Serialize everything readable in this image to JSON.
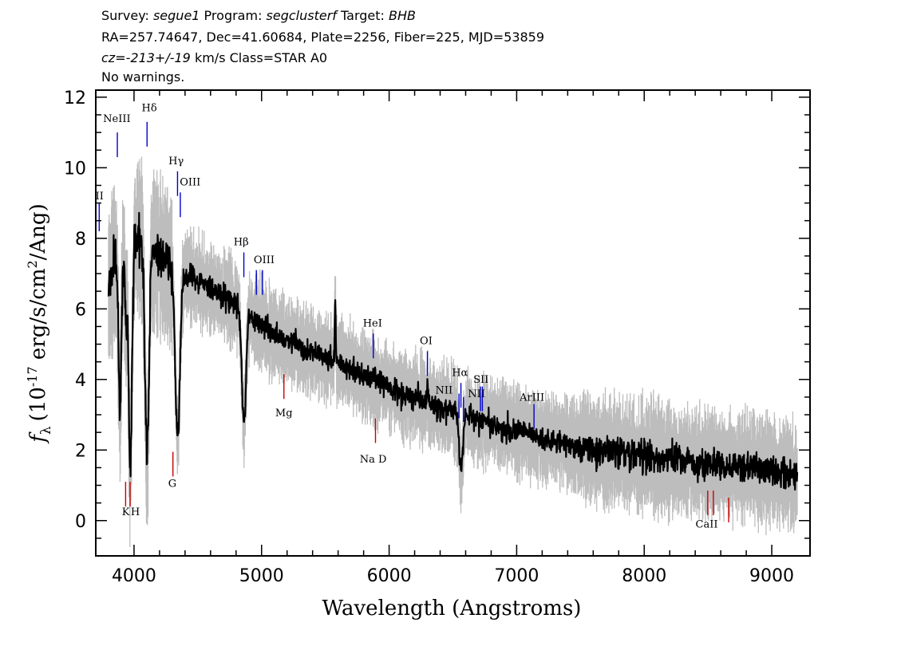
{
  "header": {
    "line1": {
      "survey_label": "Survey: ",
      "survey": "segue1",
      "program_label": " Program: ",
      "program": "segclusterf",
      "target_label": " Target: ",
      "target": "BHB"
    },
    "line2": "RA=257.74647, Dec=41.60684, Plate=2256, Fiber=225, MJD=53859",
    "line3": {
      "cz_prefix": "cz=",
      "cz_value": "-213+/-19",
      "cz_suffix": " km/s Class=STAR A0"
    },
    "line4": "No warnings."
  },
  "chart_data": {
    "type": "line",
    "xlabel": "Wavelength (Angstroms)",
    "ylabel": "f_λ (10^-17 erg/s/cm^2/Ang)",
    "ylabel_parts": {
      "symbol": "f",
      "sub": "λ",
      "pre": "(10",
      "exp": "-17",
      "mid": " erg/s/cm",
      "exp2": "2",
      "post": "/Ang)"
    },
    "xlim": [
      3700,
      9300
    ],
    "ylim": [
      -1,
      12.2
    ],
    "xticks": [
      4000,
      5000,
      6000,
      7000,
      8000,
      9000
    ],
    "yticks": [
      0,
      2,
      4,
      6,
      8,
      10,
      12
    ],
    "colors": {
      "spectrum": "#000000",
      "error_band": "#bdbdbd",
      "emission": "#0000cc",
      "absorption": "#cc0000"
    },
    "continuum_anchors": [
      [
        3800,
        6.5
      ],
      [
        3860,
        7.6
      ],
      [
        3950,
        7.9
      ],
      [
        4050,
        8.1
      ],
      [
        4150,
        7.7
      ],
      [
        4250,
        7.3
      ],
      [
        4400,
        7.0
      ],
      [
        4600,
        6.6
      ],
      [
        4850,
        6.0
      ],
      [
        5000,
        5.5
      ],
      [
        5300,
        4.9
      ],
      [
        5600,
        4.5
      ],
      [
        5900,
        3.95
      ],
      [
        6200,
        3.45
      ],
      [
        6500,
        3.1
      ],
      [
        6800,
        2.75
      ],
      [
        7200,
        2.35
      ],
      [
        7600,
        2.0
      ],
      [
        8000,
        1.85
      ],
      [
        8500,
        1.6
      ],
      [
        9000,
        1.4
      ],
      [
        9200,
        1.25
      ]
    ],
    "absorption_features": [
      {
        "name": "H8",
        "center": 3889,
        "depth": 4.5,
        "width": 12
      },
      {
        "name": "CaII K",
        "center": 3934,
        "depth": 2.0,
        "width": 8
      },
      {
        "name": "Hε",
        "center": 3970,
        "depth": 6.5,
        "width": 14
      },
      {
        "name": "Hδ",
        "center": 4102,
        "depth": 6.0,
        "width": 16
      },
      {
        "name": "Hγ",
        "center": 4341,
        "depth": 4.8,
        "width": 18
      },
      {
        "name": "Hβ",
        "center": 4861,
        "depth": 3.2,
        "width": 16
      },
      {
        "name": "Hα",
        "center": 6563,
        "depth": 1.6,
        "width": 14
      }
    ],
    "spikes": [
      {
        "x": 5577,
        "height": 1.6,
        "width": 4
      },
      {
        "x": 6300,
        "height": 0.6,
        "width": 4
      },
      {
        "x": 8860,
        "height": 0.4,
        "width": 6
      }
    ],
    "emission_lines": [
      {
        "label": "NeIII",
        "x": 3869,
        "y_top": 11.0,
        "y_bot": 10.3
      },
      {
        "label": "Hδ",
        "x": 4102,
        "y_top": 11.3,
        "y_bot": 10.6
      },
      {
        "label": "Hγ",
        "x": 4341,
        "y_top": 9.9,
        "y_bot": 9.2
      },
      {
        "label": "OIII",
        "x": 4363,
        "y_top": 9.3,
        "y_bot": 8.6
      },
      {
        "label": "II",
        "x": 3727,
        "y_top": 9.0,
        "y_bot": 8.2
      },
      {
        "label": "Hβ",
        "x": 4861,
        "y_top": 7.6,
        "y_bot": 6.9
      },
      {
        "label": "OIII",
        "x": 4959,
        "y_top": 7.1,
        "y_bot": 6.4
      },
      {
        "label": "",
        "x": 5007,
        "y_top": 7.1,
        "y_bot": 6.4
      },
      {
        "label": "HeI",
        "x": 5876,
        "y_top": 5.3,
        "y_bot": 4.6
      },
      {
        "label": "OI",
        "x": 6300,
        "y_top": 4.8,
        "y_bot": 4.1
      },
      {
        "label": "NII",
        "x": 6548,
        "y_top": 3.6,
        "y_bot": 2.9
      },
      {
        "label": "Hα",
        "x": 6563,
        "y_top": 3.9,
        "y_bot": 3.2
      },
      {
        "label": "NII",
        "x": 6583,
        "y_top": 3.5,
        "y_bot": 2.8
      },
      {
        "label": "SII",
        "x": 6716,
        "y_top": 3.8,
        "y_bot": 3.1
      },
      {
        "label": "",
        "x": 6731,
        "y_top": 3.8,
        "y_bot": 3.1
      },
      {
        "label": "ArIII",
        "x": 7136,
        "y_top": 3.3,
        "y_bot": 2.6
      }
    ],
    "emission_label_pos": [
      {
        "label": "NeIII",
        "x": 3865,
        "y": 11.3
      },
      {
        "label": "Hδ",
        "x": 4120,
        "y": 11.6
      },
      {
        "label": "Hγ",
        "x": 4330,
        "y": 10.1
      },
      {
        "label": "OIII",
        "x": 4440,
        "y": 9.5
      },
      {
        "label": "II",
        "x": 3730,
        "y": 9.1
      },
      {
        "label": "Hβ",
        "x": 4840,
        "y": 7.8
      },
      {
        "label": "OIII",
        "x": 5020,
        "y": 7.3
      },
      {
        "label": "HeI",
        "x": 5870,
        "y": 5.5
      },
      {
        "label": "OI",
        "x": 6290,
        "y": 5.0
      },
      {
        "label": "NII",
        "x": 6430,
        "y": 3.6
      },
      {
        "label": "Hα",
        "x": 6555,
        "y": 4.1
      },
      {
        "label": "NII",
        "x": 6685,
        "y": 3.5
      },
      {
        "label": "SII",
        "x": 6720,
        "y": 3.9
      },
      {
        "label": "ArIII",
        "x": 7120,
        "y": 3.4
      }
    ],
    "absorption_lines": [
      {
        "label": "",
        "x": 3934,
        "y_top": 1.1,
        "y_bot": 0.4
      },
      {
        "label": "",
        "x": 3969,
        "y_top": 1.1,
        "y_bot": 0.4
      },
      {
        "label": "",
        "x": 4305,
        "y_top": 1.95,
        "y_bot": 1.25
      },
      {
        "label": "",
        "x": 5175,
        "y_top": 4.15,
        "y_bot": 3.45
      },
      {
        "label": "",
        "x": 5893,
        "y_top": 2.9,
        "y_bot": 2.2
      },
      {
        "label": "",
        "x": 8498,
        "y_top": 0.85,
        "y_bot": 0.15
      },
      {
        "label": "",
        "x": 8542,
        "y_top": 0.85,
        "y_bot": 0.15
      },
      {
        "label": "",
        "x": 8662,
        "y_top": 0.65,
        "y_bot": -0.05
      }
    ],
    "absorption_label_pos": [
      {
        "label": "K",
        "x": 3935,
        "y": 0.15
      },
      {
        "label": "H",
        "x": 4010,
        "y": 0.15
      },
      {
        "label": "G",
        "x": 4300,
        "y": 0.95
      },
      {
        "label": "Mg",
        "x": 5175,
        "y": 2.95
      },
      {
        "label": "Na  D",
        "x": 5875,
        "y": 1.65
      },
      {
        "label": "CaII",
        "x": 8490,
        "y": -0.2
      }
    ]
  }
}
